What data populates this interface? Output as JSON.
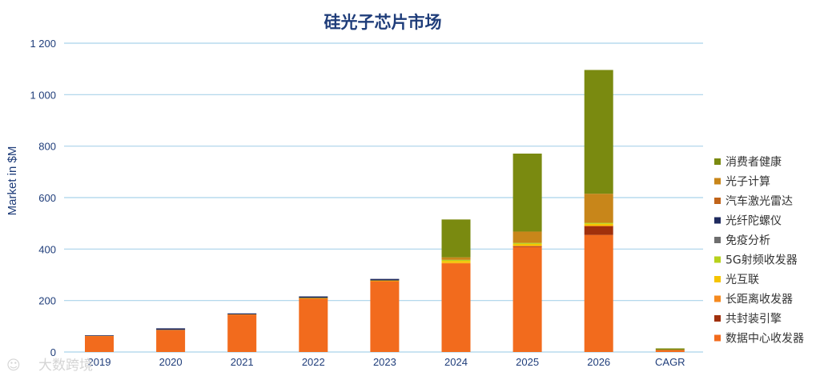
{
  "chart_data": {
    "type": "bar",
    "stacked": true,
    "title": "硅光子芯片市场",
    "ylabel": "Market in $M",
    "ylim": [
      0,
      1200
    ],
    "yticks": [
      0,
      200,
      400,
      600,
      800,
      1000,
      1200
    ],
    "ytick_labels": [
      "0",
      "200",
      "400",
      "600",
      "800",
      "1 000",
      "1 200"
    ],
    "grid": true,
    "legend_position": "right",
    "categories": [
      "2019",
      "2020",
      "2021",
      "2022",
      "2023",
      "2024",
      "2025",
      "2026",
      "CAGR"
    ],
    "series": [
      {
        "name": "数据中心收发器",
        "color": "#f26b1d",
        "values": [
          62,
          85,
          145,
          208,
          276,
          345,
          408,
          455,
          8
        ]
      },
      {
        "name": "共封装引擎",
        "color": "#a0300c",
        "values": [
          0,
          0,
          0,
          0,
          0,
          0,
          4,
          35,
          0
        ]
      },
      {
        "name": "长距离收发器",
        "color": "#f58a1f",
        "values": [
          1,
          1,
          1,
          1,
          1,
          1,
          1,
          1,
          0
        ]
      },
      {
        "name": "光互联",
        "color": "#f5c400",
        "values": [
          0,
          0,
          0,
          1,
          1,
          8,
          7,
          7,
          0
        ]
      },
      {
        "name": "5G射频收发器",
        "color": "#b7d11c",
        "values": [
          0,
          0,
          0,
          0,
          0,
          4,
          4,
          4,
          0
        ]
      },
      {
        "name": "免疫分析",
        "color": "#6e6e6e",
        "values": [
          0,
          0,
          0,
          0,
          0,
          0,
          0,
          0,
          0
        ]
      },
      {
        "name": "光纤陀螺仪",
        "color": "#1f2a5e",
        "values": [
          2,
          6,
          4,
          6,
          6,
          0,
          0,
          0,
          0
        ]
      },
      {
        "name": "汽车激光雷达",
        "color": "#c0641a",
        "values": [
          0,
          0,
          0,
          0,
          0,
          0,
          0,
          0,
          0
        ]
      },
      {
        "name": "光子计算",
        "color": "#c8861a",
        "values": [
          0,
          0,
          0,
          0,
          0,
          10,
          44,
          113,
          0
        ]
      },
      {
        "name": "消费者健康",
        "color": "#7a8a10",
        "values": [
          0,
          0,
          0,
          0,
          0,
          147,
          303,
          481,
          6
        ]
      }
    ]
  },
  "watermark": {
    "glyph": "☺",
    "text": "大数跨境"
  }
}
